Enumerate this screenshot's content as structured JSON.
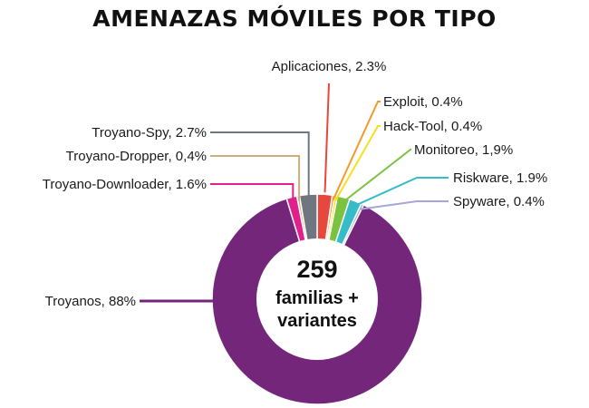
{
  "title": "AMENAZAS MÓVILES POR TIPO",
  "center": {
    "number": "259",
    "line1": "familias +",
    "line2": "variantes"
  },
  "chart_data": {
    "type": "pie",
    "variant": "donut",
    "title": "AMENAZAS MÓVILES POR TIPO",
    "slices": [
      {
        "name": "Aplicaciones",
        "value": 2.3,
        "label": "Aplicaciones, 2.3%",
        "color": "#e8473d"
      },
      {
        "name": "Exploit",
        "value": 0.4,
        "label": "Exploit, 0.4%",
        "color": "#f39a2d"
      },
      {
        "name": "Hack-Tool",
        "value": 0.4,
        "label": "Hack-Tool, 0.4%",
        "color": "#f7e11c"
      },
      {
        "name": "Monitoreo",
        "value": 1.9,
        "label": "Monitoreo, 1,9%",
        "color": "#7cc242"
      },
      {
        "name": "Riskware",
        "value": 1.9,
        "label": "Riskware, 1.9%",
        "color": "#35bcc8"
      },
      {
        "name": "Spyware",
        "value": 0.4,
        "label": "Spyware, 0.4%",
        "color": "#a6a7d8"
      },
      {
        "name": "Troyanos",
        "value": 88,
        "label": "Troyanos, 88%",
        "color": "#74267a"
      },
      {
        "name": "Troyano-Downloader",
        "value": 1.6,
        "label": "Troyano-Downloader, 1.6%",
        "color": "#e0208c"
      },
      {
        "name": "Troyano-Dropper",
        "value": 0.4,
        "label": "Troyano-Dropper, 0,4%",
        "color": "#d2ad7c"
      },
      {
        "name": "Troyano-Spy",
        "value": 2.7,
        "label": "Troyano-Spy, 2.7%",
        "color": "#6e7780"
      }
    ]
  }
}
